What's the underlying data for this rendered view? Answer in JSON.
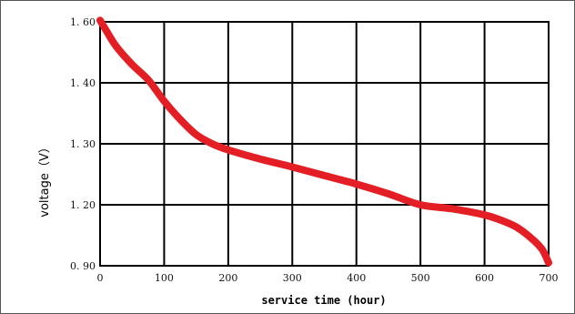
{
  "chart_data": {
    "type": "line",
    "xlabel": "service time (hour)",
    "ylabel": "voltage（V）",
    "xlim": [
      0,
      700
    ],
    "ylim": [
      0.9,
      1.6
    ],
    "x_ticks": [
      0,
      100,
      200,
      300,
      400,
      500,
      600,
      700
    ],
    "x_tick_labels": [
      "0",
      "100",
      "200",
      "300",
      "400",
      "500",
      "600",
      "700"
    ],
    "y_ticks": [
      0.9,
      1.2,
      1.3,
      1.4,
      1.6
    ],
    "y_tick_labels": [
      "0. 90",
      "1. 20",
      "1. 30",
      "1. 40",
      "1. 60"
    ],
    "grid": true,
    "series": [
      {
        "color": "#e31e24",
        "x": [
          0,
          10,
          25,
          50,
          75,
          100,
          125,
          150,
          175,
          200,
          250,
          300,
          350,
          400,
          450,
          500,
          550,
          600,
          625,
          650,
          675,
          690,
          700
        ],
        "y": [
          1.605,
          1.57,
          1.52,
          1.46,
          1.41,
          1.37,
          1.34,
          1.315,
          1.3,
          1.29,
          1.275,
          1.262,
          1.248,
          1.234,
          1.218,
          1.2,
          1.18,
          1.15,
          1.125,
          1.09,
          1.03,
          0.98,
          0.915
        ]
      }
    ]
  }
}
